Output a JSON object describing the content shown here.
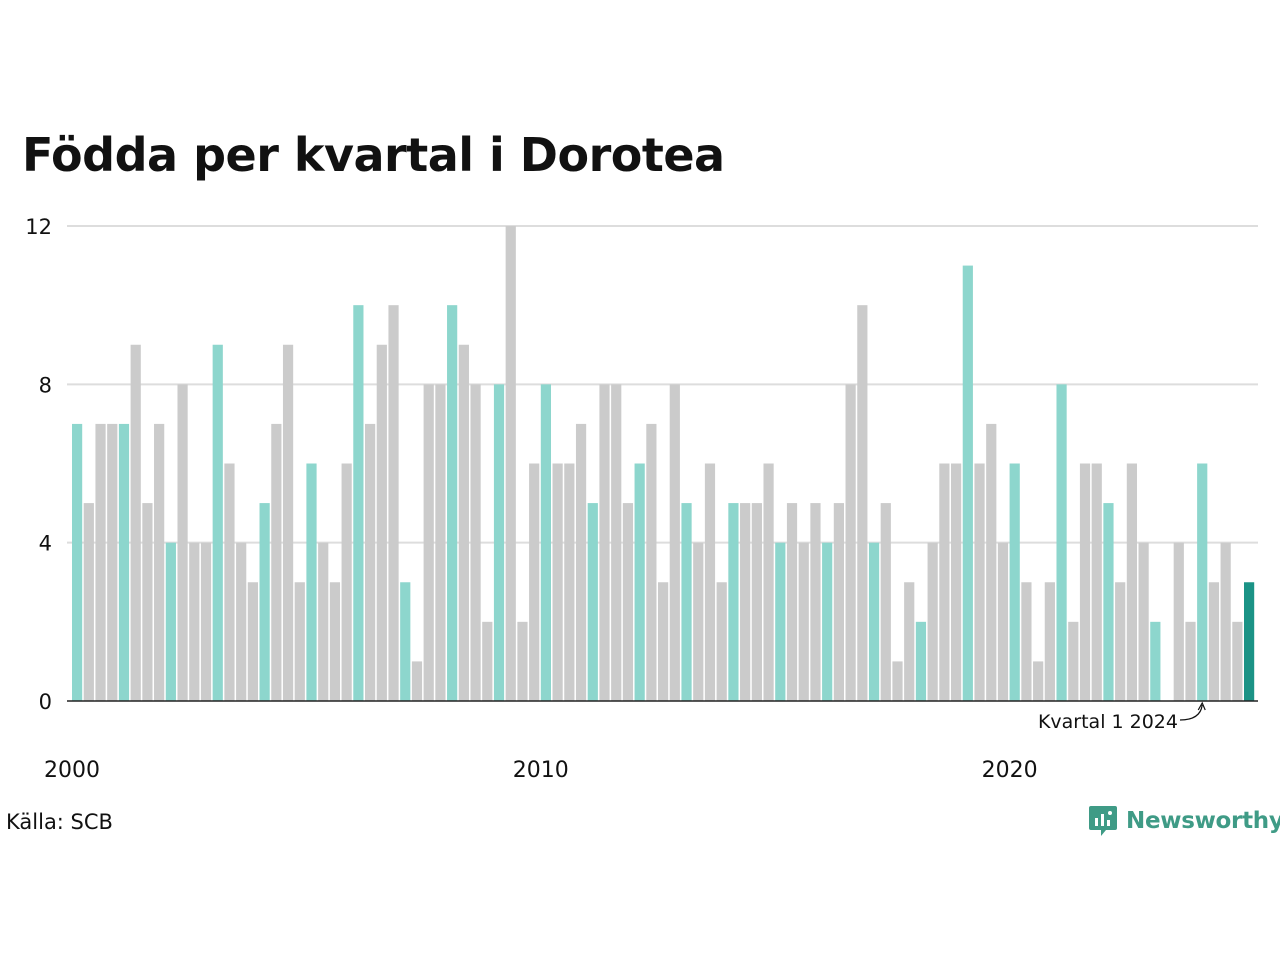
{
  "chart_data": {
    "type": "bar",
    "title": "Födda per kvartal i Dorotea",
    "xlabel": "",
    "ylabel": "",
    "ylim": [
      0,
      12
    ],
    "yticks": [
      "0",
      "4",
      "8",
      "12"
    ],
    "xticks": [
      "2000",
      "2010",
      "2020"
    ],
    "grid": true,
    "highlight_quarter": 1,
    "colors": {
      "highlight": "#8dd6cd",
      "other": "#cbcbcb",
      "latest": "#1b9386"
    },
    "annotation": "Kvartal 1 2024",
    "values": [
      7,
      5,
      7,
      7,
      7,
      9,
      5,
      7,
      4,
      8,
      4,
      4,
      9,
      6,
      4,
      3,
      5,
      7,
      9,
      3,
      6,
      4,
      3,
      6,
      10,
      7,
      9,
      10,
      3,
      1,
      8,
      8,
      10,
      9,
      8,
      2,
      8,
      12,
      2,
      6,
      8,
      6,
      6,
      7,
      5,
      8,
      8,
      5,
      6,
      7,
      3,
      8,
      5,
      4,
      6,
      3,
      5,
      5,
      5,
      6,
      4,
      5,
      4,
      5,
      4,
      5,
      8,
      10,
      4,
      5,
      1,
      3,
      2,
      4,
      6,
      6,
      11,
      6,
      7,
      4,
      6,
      3,
      1,
      3,
      8,
      2,
      6,
      6,
      5,
      3,
      6,
      4,
      2,
      0,
      4,
      2,
      6,
      3,
      4,
      2,
      3
    ]
  },
  "source": "Källa: SCB",
  "brand": {
    "name": "Newsworthy",
    "color": "#3f9b86"
  }
}
